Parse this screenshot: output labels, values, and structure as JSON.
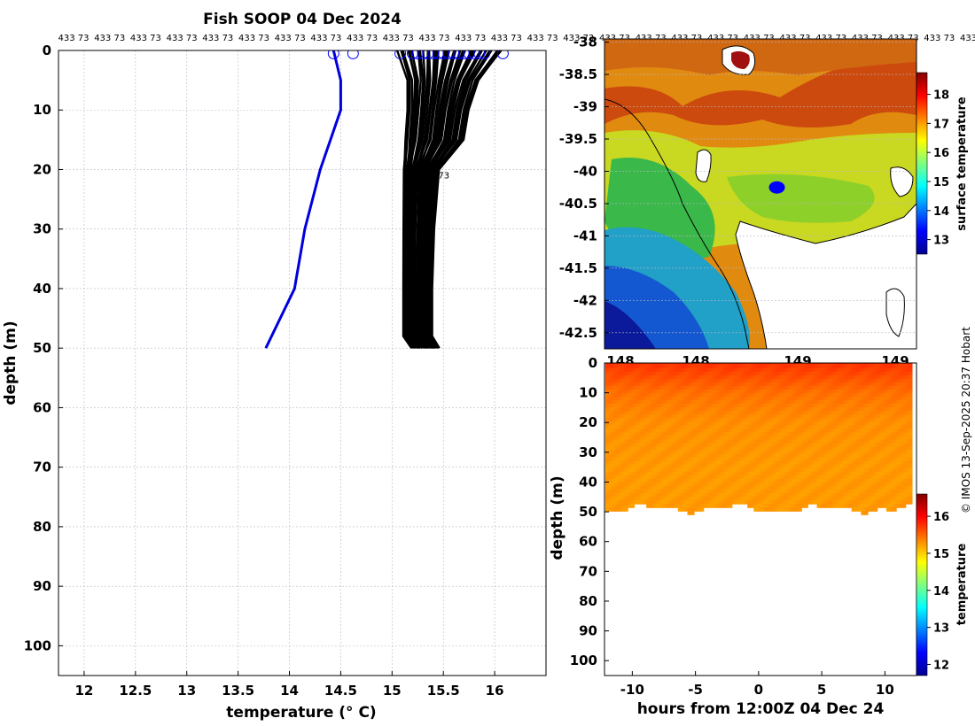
{
  "window": {
    "title": "Fish SOOP 04 Dec 2024"
  },
  "credit": "© IMOS 13-Sep-2025 20:37 Hobart",
  "repeat_label": "433 73",
  "profile_annotation": "73",
  "colors": {
    "profile_line": "#000000",
    "highlight_line": "#0000dd",
    "marker": "#0000ff"
  },
  "chart_data": [
    {
      "type": "line",
      "title": "Fish SOOP 04 Dec 2024",
      "xlabel": "temperature (° C)",
      "ylabel": "depth (m)",
      "xlim": [
        11.75,
        16.5
      ],
      "ylim": [
        105,
        0
      ],
      "y_inverted": true,
      "grid": true,
      "xticks": [
        12,
        12.5,
        13,
        13.5,
        14,
        14.5,
        15,
        15.5,
        16
      ],
      "xtick_labels": [
        "12",
        "12.5",
        "13",
        "13.5",
        "14",
        "14.5",
        "15",
        "15.5",
        "16"
      ],
      "yticks": [
        0,
        10,
        20,
        30,
        40,
        50,
        60,
        70,
        80,
        90,
        100
      ],
      "ytick_labels": [
        "0",
        "10",
        "20",
        "30",
        "40",
        "50",
        "60",
        "70",
        "80",
        "90",
        "100"
      ],
      "series": [
        {
          "role": "highlight",
          "color": "#0000dd",
          "depth": [
            0,
            5,
            10,
            20,
            30,
            40,
            50
          ],
          "temperature": [
            14.43,
            14.5,
            14.5,
            14.3,
            14.15,
            14.05,
            13.77
          ]
        },
        {
          "role": "bulk",
          "color": "#000000",
          "depth": [
            0,
            5,
            10,
            15,
            20,
            30,
            40,
            48,
            50
          ],
          "temperature_min": [
            15.05,
            15.15,
            15.15,
            15.13,
            15.12,
            15.12,
            15.12,
            15.12,
            15.2
          ],
          "temperature_max": [
            16.08,
            15.85,
            15.75,
            15.7,
            15.45,
            15.4,
            15.38,
            15.38,
            15.45
          ]
        }
      ],
      "surface_markers_temperature": [
        14.43,
        14.62,
        15.08,
        15.2,
        15.25,
        15.3,
        15.35,
        15.4,
        15.45,
        15.5,
        15.55,
        15.6,
        15.65,
        15.7,
        15.75,
        15.8,
        15.85,
        15.9,
        16.08
      ]
    },
    {
      "type": "heatmap",
      "colorbar_label": "surface temperature",
      "xlim": [
        147.2,
        149.1
      ],
      "ylim": [
        -42.75,
        -37.95
      ],
      "yticks": [
        -38,
        -38.5,
        -39,
        -39.5,
        -40,
        -40.5,
        -41,
        -41.5,
        -42,
        -42.5
      ],
      "ytick_labels": [
        "-38",
        "-38.5",
        "-39",
        "-39.5",
        "-40",
        "-40.5",
        "-41",
        "-41.5",
        "-42",
        "-42.5"
      ],
      "xtick_labels": [
        "148",
        "148",
        "149",
        "149"
      ],
      "colorbar_range": [
        12.5,
        18.75
      ],
      "colorbar_ticks": [
        13,
        14,
        15,
        16,
        17,
        18
      ],
      "colorbar_tick_labels": [
        "13",
        "14",
        "15",
        "16",
        "17",
        "18"
      ],
      "vessel_position": {
        "lon": 148.25,
        "lat": -40.25
      }
    },
    {
      "type": "scatter",
      "xlabel": "hours from 12:00Z 04 Dec 24",
      "ylabel": "depth (m)",
      "colorbar_label": "temperature",
      "xlim": [
        -12.2,
        12.5
      ],
      "ylim": [
        105,
        0
      ],
      "xticks": [
        -10,
        -5,
        0,
        5,
        10
      ],
      "xtick_labels": [
        "-10",
        "-5",
        "0",
        "5",
        "10"
      ],
      "yticks": [
        0,
        10,
        20,
        30,
        40,
        50,
        60,
        70,
        80,
        90,
        100
      ],
      "ytick_labels": [
        "0",
        "10",
        "20",
        "30",
        "40",
        "50",
        "60",
        "70",
        "80",
        "90",
        "100"
      ],
      "colorbar_range": [
        11.7,
        16.6
      ],
      "colorbar_ticks": [
        12,
        13,
        14,
        15,
        16
      ],
      "colorbar_tick_labels": [
        "12",
        "13",
        "14",
        "15",
        "16"
      ],
      "time_range_hours": [
        -12,
        12
      ],
      "max_depth_m": 50,
      "temperature_layers": [
        {
          "depth": 0,
          "temperature": 15.75
        },
        {
          "depth": 5,
          "temperature": 15.6
        },
        {
          "depth": 10,
          "temperature": 15.45
        },
        {
          "depth": 20,
          "temperature": 15.3
        },
        {
          "depth": 35,
          "temperature": 15.25
        },
        {
          "depth": 50,
          "temperature": 15.25
        }
      ]
    }
  ]
}
